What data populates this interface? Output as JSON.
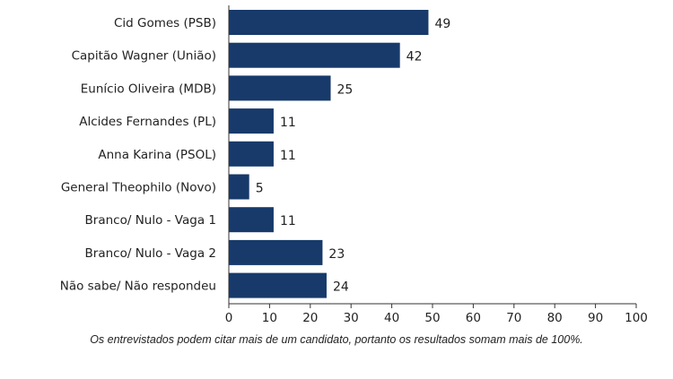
{
  "colors": {
    "bar": "#173a6b",
    "axis": "#333333",
    "text": "#222222",
    "background": "#ffffff"
  },
  "chart_data": {
    "type": "bar",
    "orientation": "horizontal",
    "categories": [
      "Cid Gomes (PSB)",
      "Capitão Wagner (União)",
      "Eunício Oliveira (MDB)",
      "Alcides Fernandes (PL)",
      "Anna Karina (PSOL)",
      "General Theophilo (Novo)",
      "Branco/ Nulo - Vaga 1",
      "Branco/ Nulo - Vaga 2",
      "Não sabe/ Não respondeu"
    ],
    "values": [
      49,
      42,
      25,
      11,
      11,
      5,
      11,
      23,
      24
    ],
    "xlim": [
      0,
      100
    ],
    "xticks": [
      0,
      10,
      20,
      30,
      40,
      50,
      60,
      70,
      80,
      90,
      100
    ],
    "grid": false,
    "data_labels": true,
    "legend": "none"
  },
  "footnote": "Os entrevistados podem citar mais de um candidato, portanto os resultados somam mais de 100%."
}
